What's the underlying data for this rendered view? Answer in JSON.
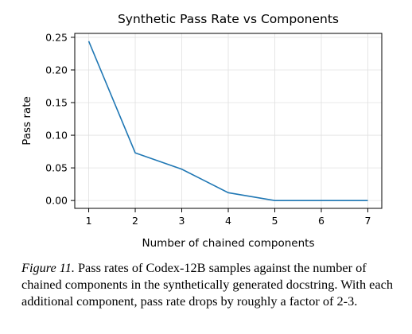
{
  "chart_data": {
    "type": "line",
    "title": "Synthetic Pass Rate vs Components",
    "xlabel": "Number of chained components",
    "ylabel": "Pass rate",
    "x": [
      1,
      2,
      3,
      4,
      5,
      6,
      7
    ],
    "series": [
      {
        "values": [
          0.244,
          0.073,
          0.048,
          0.012,
          0.0,
          0.0,
          0.0
        ],
        "color": "#1f77b4"
      }
    ],
    "xticks": [
      "1",
      "2",
      "3",
      "4",
      "5",
      "6",
      "7"
    ],
    "yticks": [
      "0.00",
      "0.05",
      "0.10",
      "0.15",
      "0.20",
      "0.25"
    ],
    "xlim": [
      0.7,
      7.3
    ],
    "ylim": [
      -0.012,
      0.256
    ],
    "grid": true,
    "grid_color": "#e0e0e0"
  },
  "caption": {
    "label": "Figure 11.",
    "text": " Pass rates of Codex-12B samples against the number of chained components in the synthetically generated docstring. With each additional component, pass rate drops by roughly a factor of 2-3."
  }
}
